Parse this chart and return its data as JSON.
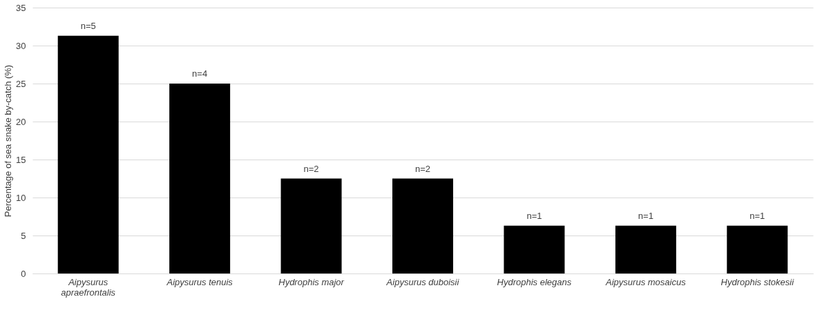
{
  "chart_data": {
    "type": "bar",
    "ylabel": "Percentage of sea snake by-catch (%)",
    "categories": [
      "Aipysurus apraefrontalis",
      "Aipysurus tenuis",
      "Hydrophis major",
      "Aipysurus duboisii",
      "Hydrophis elegans",
      "Aipysurus mosaicus",
      "Hydrophis stokesii"
    ],
    "values": [
      31.3,
      25,
      12.5,
      12.5,
      6.3,
      6.3,
      6.3
    ],
    "annotations": [
      {
        "text": "n=5",
        "x": "Aipysurus apraefrontalis",
        "y": 31.3
      },
      {
        "text": "n=4",
        "x": "Aipysurus tenuis",
        "y": 25
      },
      {
        "text": "n=2",
        "x": "Hydrophis major",
        "y": 12.5
      },
      {
        "text": "n=2",
        "x": "Aipysurus duboisii",
        "y": 12.5
      },
      {
        "text": "n=1",
        "x": "Hydrophis elegans",
        "y": 6.3
      },
      {
        "text": "n=1",
        "x": "Aipysurus mosaicus",
        "y": 6.3
      },
      {
        "text": "n=1",
        "x": "Hydrophis stokesii",
        "y": 6.3
      }
    ],
    "color": "#000000",
    "ylim": [
      0,
      35
    ],
    "yticks": [
      0,
      5,
      10,
      15,
      20,
      25,
      30,
      35
    ],
    "grid": "y"
  }
}
